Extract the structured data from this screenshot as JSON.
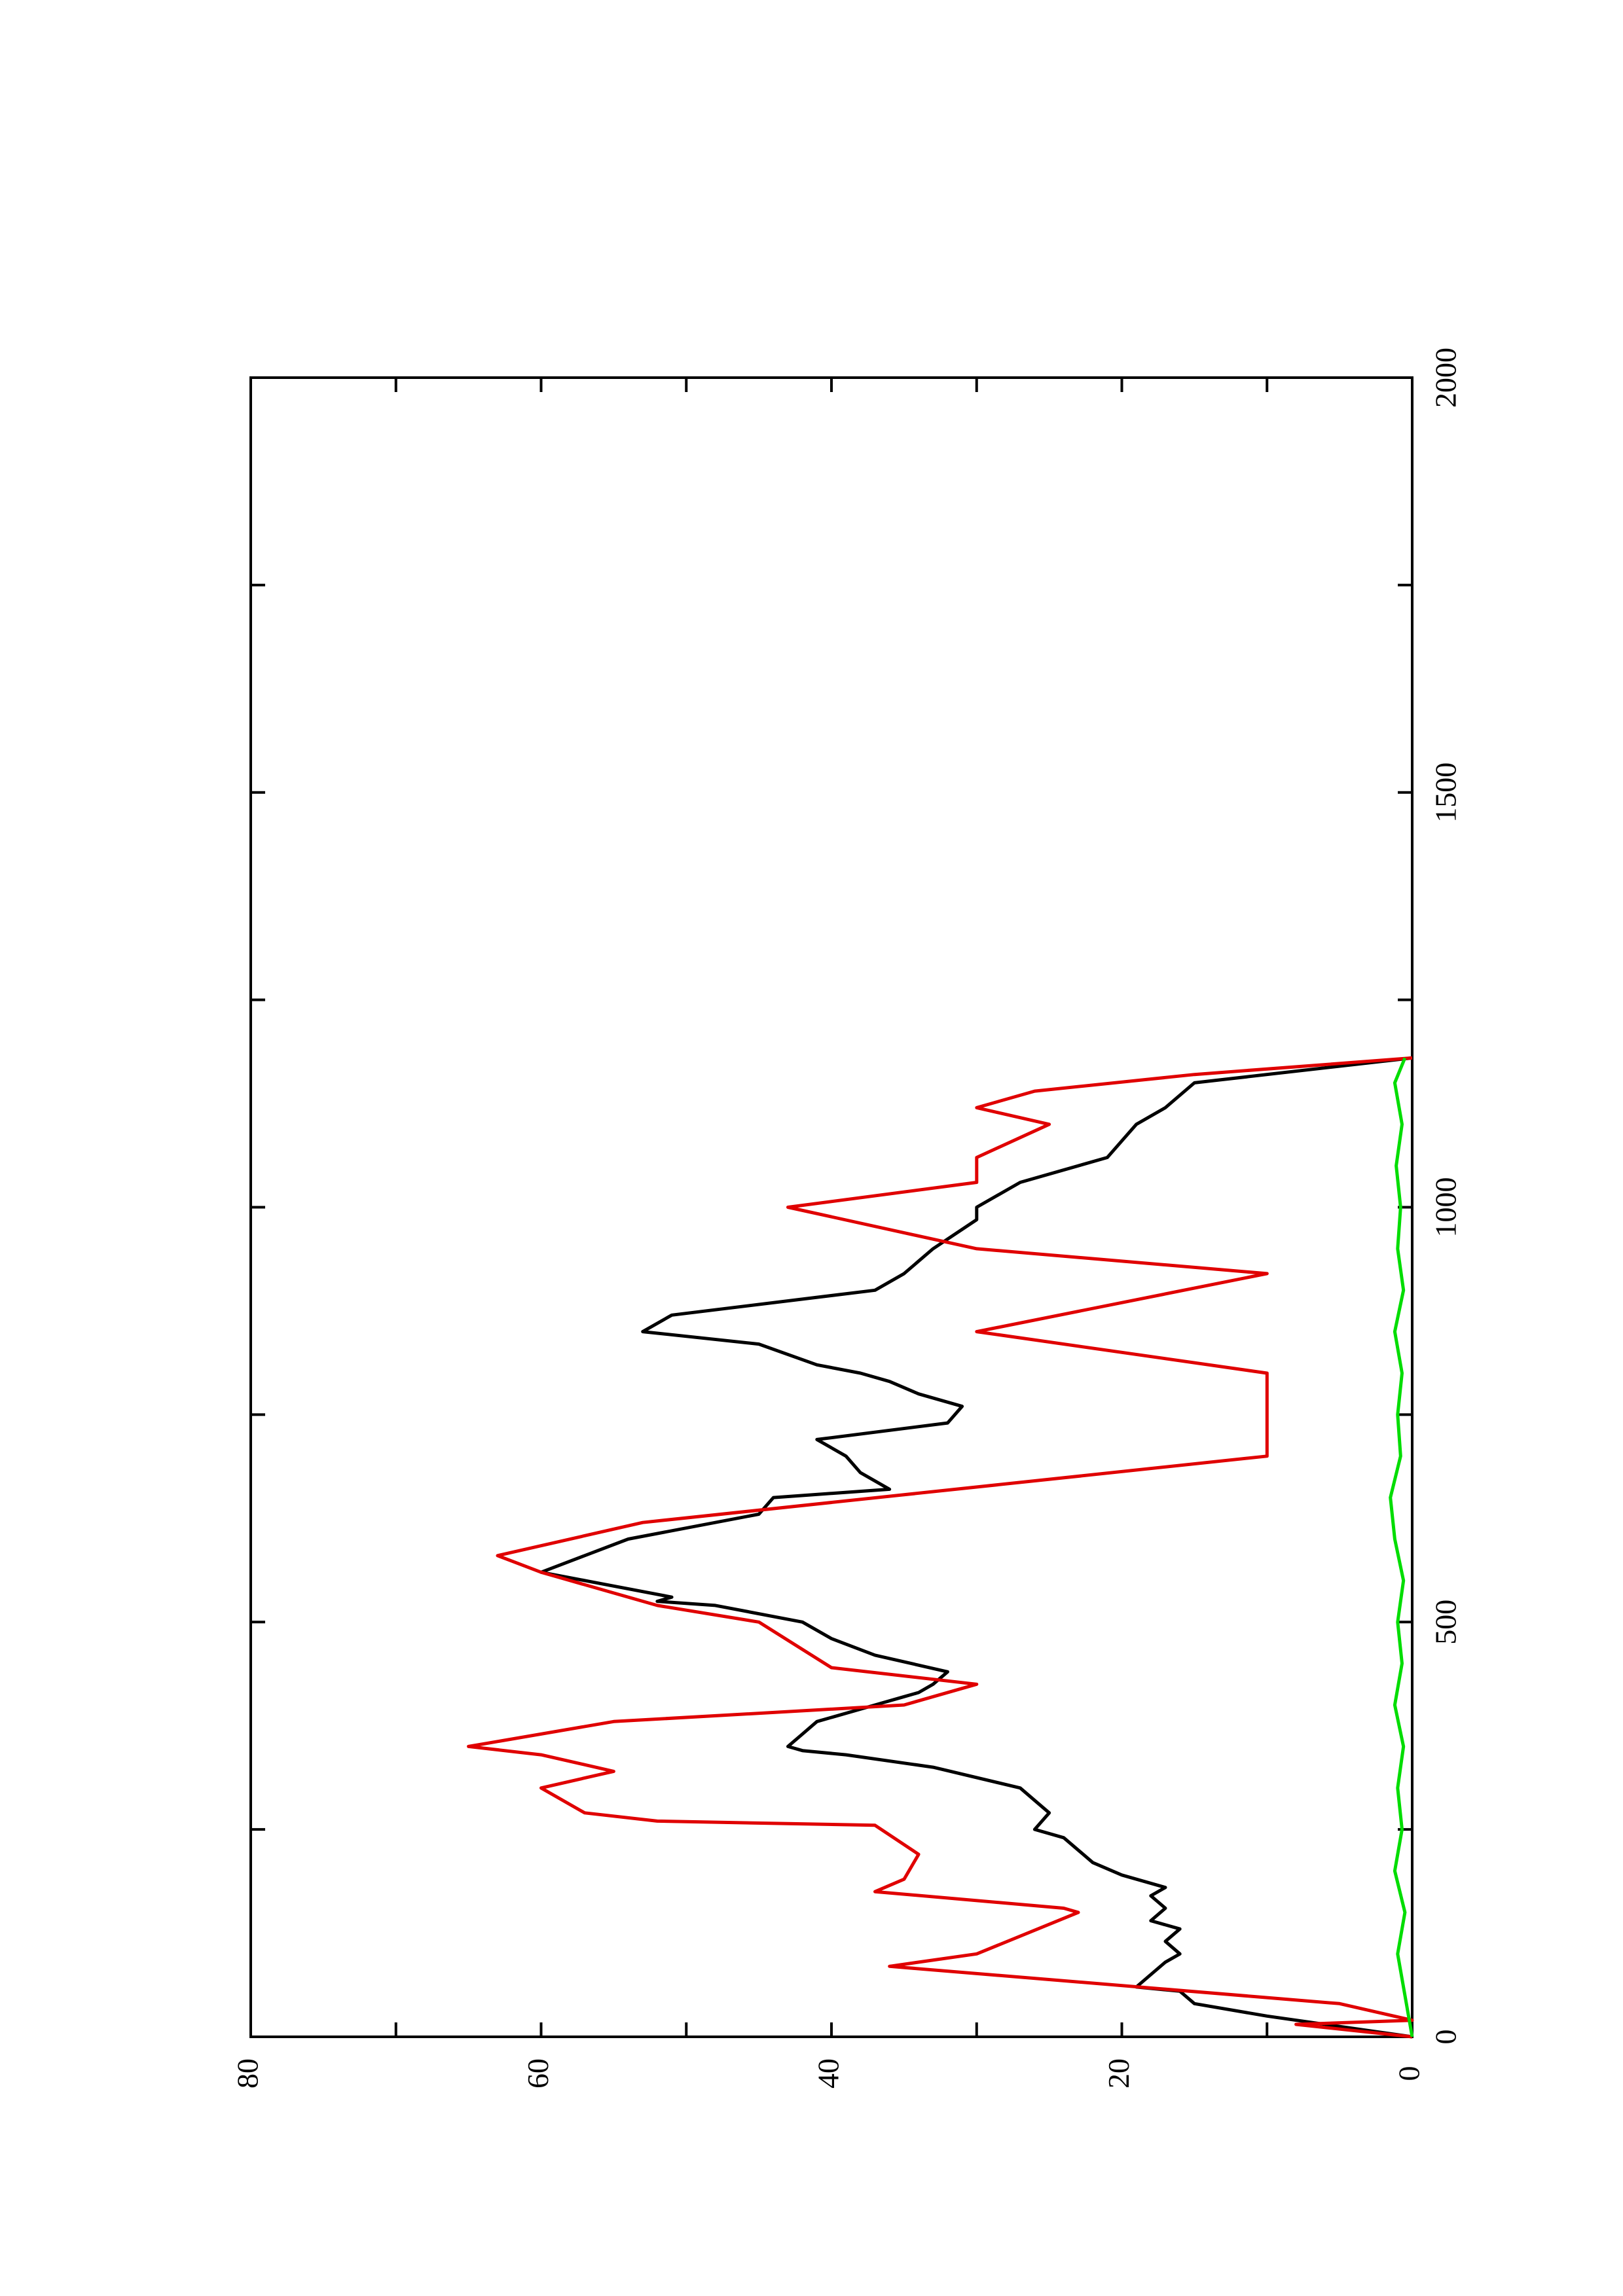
{
  "chart_data": {
    "type": "line",
    "title": "",
    "xlabel": "",
    "ylabel": "",
    "orientation": "rotated 90 degrees counter-clockwise (x axis vertical, increasing upward; y axis horizontal, increasing leftward)",
    "xlim": [
      0,
      2000
    ],
    "ylim": [
      0,
      80
    ],
    "x_ticks": [
      "0",
      "500",
      "1000",
      "1500",
      "2000"
    ],
    "y_ticks": [
      "0",
      "20",
      "40",
      "60",
      "80"
    ],
    "grid": false,
    "legend": "none",
    "series": [
      {
        "color": "#000000",
        "points": [
          [
            0,
            0
          ],
          [
            10,
            4
          ],
          [
            25,
            10
          ],
          [
            40,
            15
          ],
          [
            55,
            16
          ],
          [
            60,
            19
          ],
          [
            75,
            18
          ],
          [
            90,
            17
          ],
          [
            100,
            16
          ],
          [
            115,
            17
          ],
          [
            130,
            16
          ],
          [
            140,
            18
          ],
          [
            155,
            17
          ],
          [
            170,
            18
          ],
          [
            180,
            17
          ],
          [
            195,
            20
          ],
          [
            210,
            22
          ],
          [
            225,
            23
          ],
          [
            240,
            24
          ],
          [
            250,
            26
          ],
          [
            270,
            25
          ],
          [
            285,
            26
          ],
          [
            300,
            27
          ],
          [
            325,
            33
          ],
          [
            340,
            39
          ],
          [
            345,
            42
          ],
          [
            350,
            43
          ],
          [
            365,
            42
          ],
          [
            380,
            41
          ],
          [
            400,
            37
          ],
          [
            410,
            35
          ],
          [
            415,
            34
          ],
          [
            425,
            33
          ],
          [
            440,
            32
          ],
          [
            460,
            37
          ],
          [
            480,
            40
          ],
          [
            500,
            42
          ],
          [
            520,
            48
          ],
          [
            525,
            52
          ],
          [
            530,
            51
          ],
          [
            560,
            60
          ],
          [
            580,
            57
          ],
          [
            600,
            54
          ],
          [
            630,
            45
          ],
          [
            650,
            44
          ],
          [
            660,
            36
          ],
          [
            680,
            38
          ],
          [
            700,
            39
          ],
          [
            720,
            41
          ],
          [
            740,
            32
          ],
          [
            760,
            31
          ],
          [
            775,
            34
          ],
          [
            790,
            36
          ],
          [
            800,
            38
          ],
          [
            810,
            41
          ],
          [
            835,
            45
          ],
          [
            850,
            53
          ],
          [
            870,
            51
          ],
          [
            900,
            37
          ],
          [
            920,
            35
          ],
          [
            950,
            33
          ],
          [
            985,
            30
          ],
          [
            1000,
            30
          ],
          [
            1030,
            27
          ],
          [
            1060,
            21
          ],
          [
            1080,
            20
          ],
          [
            1100,
            19
          ],
          [
            1120,
            17
          ],
          [
            1150,
            15
          ],
          [
            1170,
            5
          ],
          [
            1180,
            0
          ]
        ]
      },
      {
        "color": "#e00000",
        "points": [
          [
            0,
            0
          ],
          [
            15,
            8
          ],
          [
            20,
            0
          ],
          [
            40,
            5
          ],
          [
            85,
            36
          ],
          [
            100,
            30
          ],
          [
            150,
            23
          ],
          [
            155,
            24
          ],
          [
            175,
            37
          ],
          [
            190,
            35
          ],
          [
            220,
            34
          ],
          [
            255,
            37
          ],
          [
            260,
            52
          ],
          [
            270,
            57
          ],
          [
            300,
            60
          ],
          [
            320,
            55
          ],
          [
            340,
            60
          ],
          [
            350,
            65
          ],
          [
            380,
            55
          ],
          [
            400,
            35
          ],
          [
            425,
            30
          ],
          [
            445,
            40
          ],
          [
            500,
            45
          ],
          [
            520,
            52
          ],
          [
            560,
            60
          ],
          [
            580,
            63
          ],
          [
            620,
            53
          ],
          [
            700,
            10
          ],
          [
            760,
            10
          ],
          [
            800,
            10
          ],
          [
            850,
            30
          ],
          [
            920,
            10
          ],
          [
            950,
            30
          ],
          [
            1000,
            43
          ],
          [
            1030,
            30
          ],
          [
            1060,
            30
          ],
          [
            1100,
            25
          ],
          [
            1120,
            30
          ],
          [
            1140,
            26
          ],
          [
            1160,
            15
          ],
          [
            1180,
            0
          ]
        ]
      },
      {
        "color": "#00dd00",
        "points": [
          [
            0,
            0
          ],
          [
            50,
            0.5
          ],
          [
            100,
            1.0
          ],
          [
            150,
            0.5
          ],
          [
            200,
            1.2
          ],
          [
            250,
            0.7
          ],
          [
            300,
            1.0
          ],
          [
            350,
            0.6
          ],
          [
            400,
            1.2
          ],
          [
            450,
            0.7
          ],
          [
            500,
            1.0
          ],
          [
            550,
            0.6
          ],
          [
            600,
            1.2
          ],
          [
            650,
            1.5
          ],
          [
            700,
            0.8
          ],
          [
            750,
            1.0
          ],
          [
            800,
            0.7
          ],
          [
            850,
            1.2
          ],
          [
            900,
            0.6
          ],
          [
            950,
            1.0
          ],
          [
            1000,
            0.8
          ],
          [
            1050,
            1.1
          ],
          [
            1100,
            0.7
          ],
          [
            1150,
            1.2
          ],
          [
            1180,
            0.5
          ]
        ]
      }
    ]
  }
}
